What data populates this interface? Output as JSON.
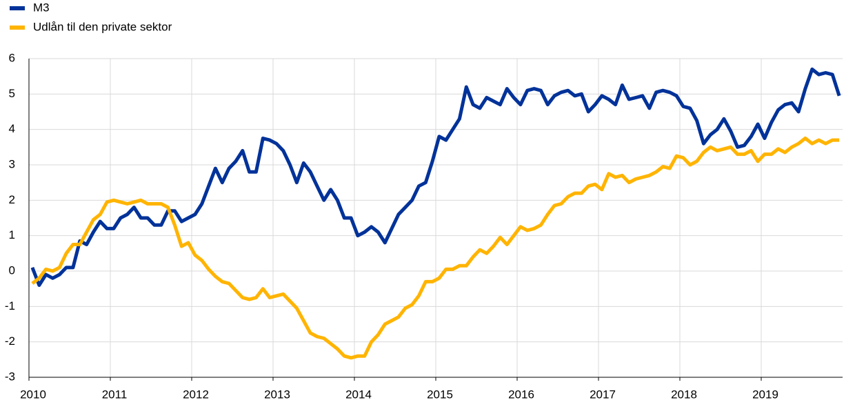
{
  "chart_data": {
    "type": "line",
    "categories": [
      "2010",
      null,
      null,
      null,
      null,
      null,
      null,
      null,
      null,
      null,
      null,
      null,
      "2011",
      null,
      null,
      null,
      null,
      null,
      null,
      null,
      null,
      null,
      null,
      null,
      "2012",
      null,
      null,
      null,
      null,
      null,
      null,
      null,
      null,
      null,
      null,
      null,
      "2013",
      null,
      null,
      null,
      null,
      null,
      null,
      null,
      null,
      null,
      null,
      null,
      "2014",
      null,
      null,
      null,
      null,
      null,
      null,
      null,
      null,
      null,
      null,
      null,
      "2015",
      null,
      null,
      null,
      null,
      null,
      null,
      null,
      null,
      null,
      null,
      null,
      "2016",
      null,
      null,
      null,
      null,
      null,
      null,
      null,
      null,
      null,
      null,
      null,
      "2017",
      null,
      null,
      null,
      null,
      null,
      null,
      null,
      null,
      null,
      null,
      null,
      "2018",
      null,
      null,
      null,
      null,
      null,
      null,
      null,
      null,
      null,
      null,
      null,
      "2019",
      null,
      null,
      null,
      null,
      null,
      null,
      null,
      null,
      null,
      null,
      null
    ],
    "series": [
      {
        "name": "M3",
        "color": "#003299",
        "values": [
          0.1,
          -0.4,
          -0.1,
          -0.2,
          -0.1,
          0.1,
          0.1,
          0.85,
          0.75,
          1.1,
          1.4,
          1.2,
          1.2,
          1.5,
          1.6,
          1.8,
          1.5,
          1.5,
          1.3,
          1.3,
          1.7,
          1.7,
          1.4,
          1.5,
          1.6,
          1.9,
          2.4,
          2.9,
          2.5,
          2.9,
          3.1,
          3.4,
          2.8,
          2.8,
          3.75,
          3.7,
          3.6,
          3.4,
          3.0,
          2.5,
          3.05,
          2.8,
          2.4,
          2.0,
          2.3,
          2.0,
          1.5,
          1.5,
          1.0,
          1.1,
          1.25,
          1.1,
          0.8,
          1.2,
          1.6,
          1.8,
          2.0,
          2.4,
          2.5,
          3.1,
          3.8,
          3.7,
          4.0,
          4.3,
          5.2,
          4.7,
          4.6,
          4.9,
          4.8,
          4.7,
          5.15,
          4.9,
          4.7,
          5.1,
          5.15,
          5.1,
          4.7,
          4.95,
          5.05,
          5.1,
          4.95,
          5.0,
          4.5,
          4.7,
          4.95,
          4.85,
          4.7,
          5.25,
          4.85,
          4.9,
          4.95,
          4.6,
          5.05,
          5.1,
          5.05,
          4.95,
          4.65,
          4.6,
          4.25,
          3.6,
          3.85,
          4.0,
          4.3,
          3.95,
          3.5,
          3.55,
          3.8,
          4.15,
          3.75,
          4.2,
          4.55,
          4.7,
          4.75,
          4.5,
          5.15,
          5.7,
          5.55,
          5.6,
          5.55,
          4.95
        ]
      },
      {
        "name": "Udlån til den private sektor",
        "color": "#ffb400",
        "values": [
          -0.35,
          -0.2,
          0.05,
          0.0,
          0.1,
          0.5,
          0.75,
          0.75,
          1.1,
          1.45,
          1.6,
          1.95,
          2.0,
          1.95,
          1.9,
          1.95,
          2.0,
          1.9,
          1.9,
          1.9,
          1.8,
          1.3,
          0.7,
          0.8,
          0.45,
          0.3,
          0.05,
          -0.15,
          -0.3,
          -0.35,
          -0.55,
          -0.75,
          -0.8,
          -0.75,
          -0.5,
          -0.75,
          -0.7,
          -0.65,
          -0.85,
          -1.05,
          -1.4,
          -1.75,
          -1.85,
          -1.9,
          -2.05,
          -2.2,
          -2.4,
          -2.45,
          -2.4,
          -2.4,
          -2.0,
          -1.8,
          -1.5,
          -1.4,
          -1.3,
          -1.05,
          -0.95,
          -0.7,
          -0.3,
          -0.3,
          -0.2,
          0.05,
          0.05,
          0.15,
          0.15,
          0.4,
          0.6,
          0.5,
          0.7,
          0.95,
          0.75,
          1.0,
          1.25,
          1.15,
          1.2,
          1.3,
          1.6,
          1.85,
          1.9,
          2.1,
          2.2,
          2.2,
          2.4,
          2.45,
          2.3,
          2.75,
          2.65,
          2.7,
          2.5,
          2.6,
          2.65,
          2.7,
          2.8,
          2.95,
          2.9,
          3.25,
          3.2,
          3.0,
          3.1,
          3.35,
          3.5,
          3.4,
          3.45,
          3.5,
          3.3,
          3.3,
          3.4,
          3.1,
          3.3,
          3.3,
          3.45,
          3.35,
          3.5,
          3.6,
          3.75,
          3.6,
          3.7,
          3.6,
          3.7,
          3.7
        ]
      }
    ],
    "ylim": [
      -3,
      6
    ],
    "yticks": [
      -3,
      -2,
      -1,
      0,
      1,
      2,
      3,
      4,
      5,
      6
    ],
    "grid": true
  }
}
